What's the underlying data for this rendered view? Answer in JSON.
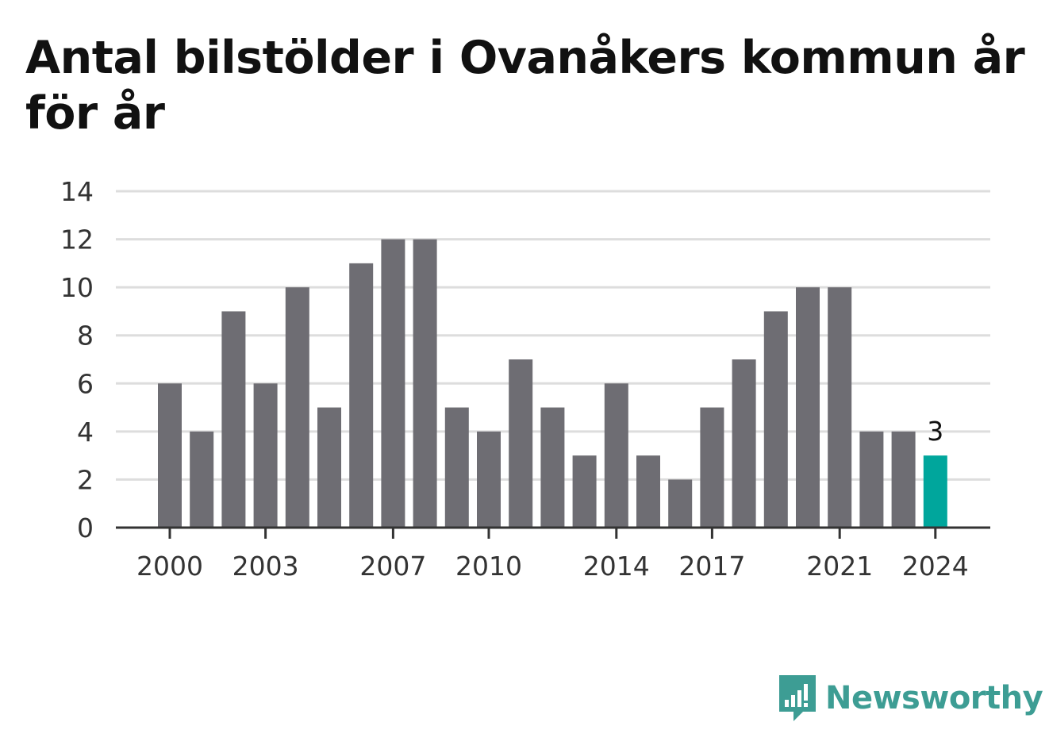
{
  "chart_data": {
    "type": "bar",
    "title": "Antal bilstölder i Ovanåkers kommun år för år",
    "xlabel": "",
    "ylabel": "",
    "categories": [
      "2000",
      "2001",
      "2002",
      "2003",
      "2004",
      "2005",
      "2006",
      "2007",
      "2008",
      "2009",
      "2010",
      "2011",
      "2012",
      "2013",
      "2014",
      "2015",
      "2016",
      "2017",
      "2018",
      "2019",
      "2020",
      "2021",
      "2022",
      "2023",
      "2024"
    ],
    "values": [
      6,
      4,
      9,
      6,
      10,
      5,
      11,
      12,
      12,
      5,
      4,
      7,
      5,
      3,
      6,
      3,
      2,
      5,
      7,
      9,
      10,
      10,
      4,
      4,
      3
    ],
    "x_tick_labels": [
      "2000",
      "2003",
      "2007",
      "2010",
      "2014",
      "2017",
      "2021",
      "2024"
    ],
    "y_ticks": [
      "0",
      "2",
      "4",
      "6",
      "8",
      "10",
      "12",
      "14"
    ],
    "ylim": [
      0,
      14
    ],
    "grid": "horizontal",
    "highlight": {
      "category": "2024",
      "label": "3"
    },
    "colors": {
      "bar": "#6e6d73",
      "highlight": "#00a69c",
      "grid": "#dddddd",
      "axis": "#333333"
    }
  },
  "brand": {
    "name": "Newsworthy",
    "icon": "newsworthy-logo-icon",
    "color": "#3d9d94"
  }
}
